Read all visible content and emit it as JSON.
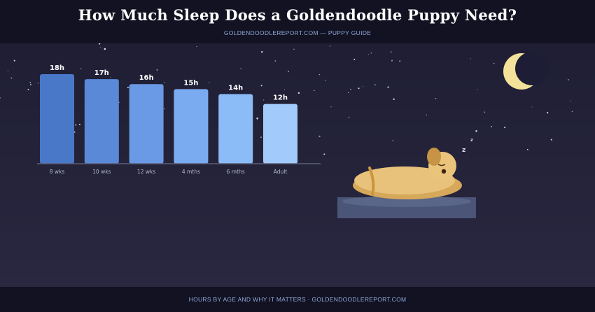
{
  "header": {
    "title": "How Much Sleep Does a Goldendoodle Puppy Need?",
    "subtitle": "GOLDENDOODLEREPORT.COM — PUPPY GUIDE"
  },
  "footer": {
    "text": "HOURS BY AGE AND WHY IT MATTERS · GOLDENDOODLEREPORT.COM"
  },
  "chart_data": {
    "type": "bar",
    "title": "",
    "xlabel": "",
    "ylabel": "",
    "categories": [
      "8 wks",
      "10 wks",
      "12 wks",
      "4 mths",
      "6 mths",
      "Adult"
    ],
    "values": [
      18,
      17,
      16,
      15,
      14,
      12
    ],
    "data_labels": [
      "18h",
      "17h",
      "16h",
      "15h",
      "14h",
      "12h"
    ],
    "ylim": [
      0,
      18
    ],
    "grid": false,
    "colors": [
      "#4a78c8",
      "#5a89d8",
      "#6a9ae6",
      "#7aabf0",
      "#8cbcf8",
      "#a2cbfc"
    ]
  },
  "scene": {
    "icons": [
      "moon-icon",
      "sleeping-puppy-icon",
      "dog-bed-icon",
      "zzz-icon"
    ],
    "zzz": "z"
  },
  "colors": {
    "background": "#232238",
    "header": "#121222",
    "accent": "#8fa8d8",
    "moon": "#f3e29a",
    "puppy": "#e6c072",
    "bed": "#4a5577"
  }
}
